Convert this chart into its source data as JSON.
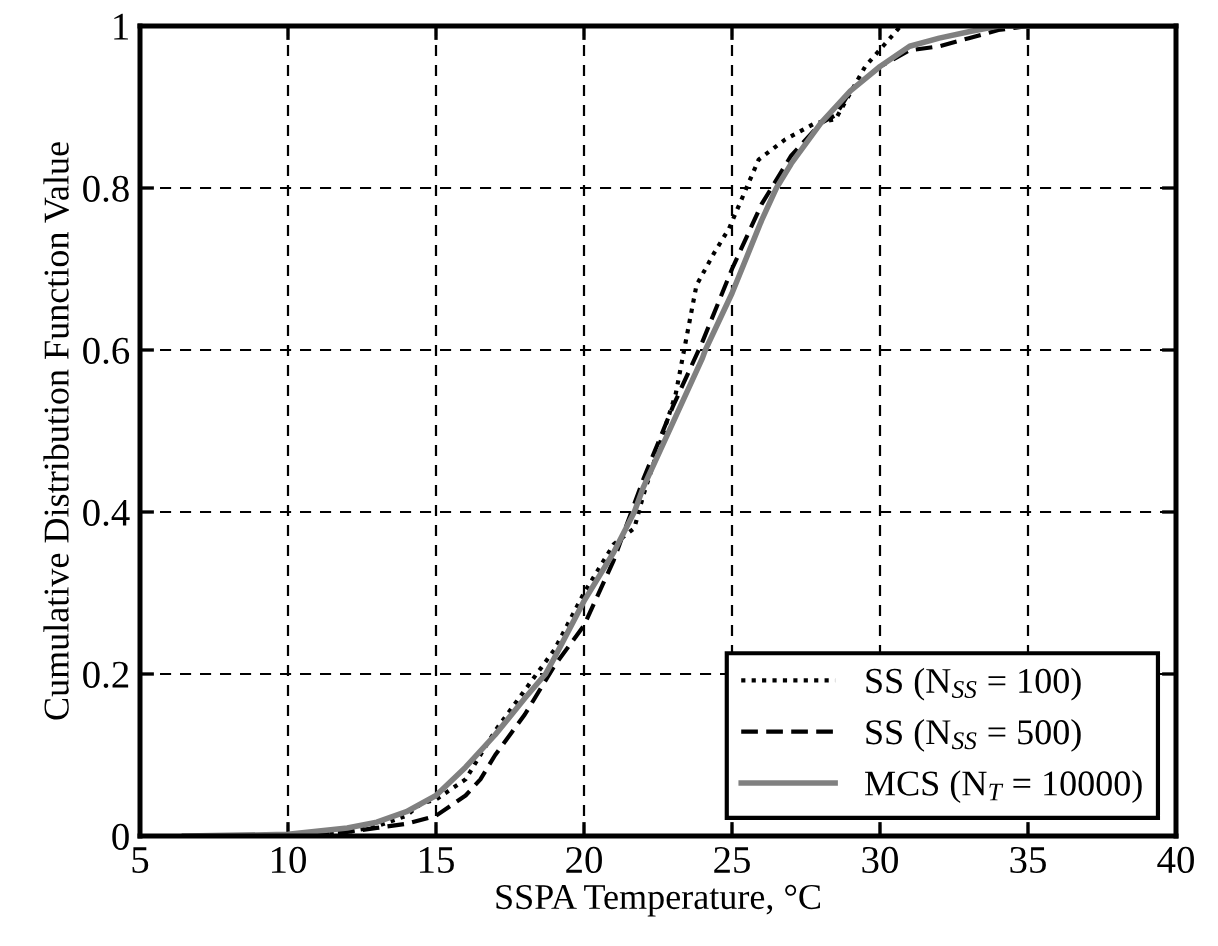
{
  "chart_data": {
    "type": "line",
    "xlabel": "SSPA Temperature, °C",
    "ylabel": "Cumulative Distribution Function Value",
    "xlim": [
      5,
      40
    ],
    "xticks": [
      5,
      10,
      15,
      20,
      25,
      30,
      35,
      40
    ],
    "ylim": [
      0,
      1
    ],
    "yticks": [
      0,
      0.2,
      0.4,
      0.6,
      0.8,
      1
    ],
    "grid": true,
    "legend": "bottom right",
    "marker": "none",
    "series": [
      {
        "name": "SS (N$_{SS}$ = 100)",
        "color": "#000000",
        "line_style": "dotted",
        "x": [
          10,
          12,
          13,
          14,
          14.5,
          15,
          16,
          17,
          18,
          19,
          20,
          21,
          21.7,
          22,
          23.1,
          23.8,
          24.4,
          24.9,
          25.9,
          26.8,
          27.8,
          28.5,
          29.5,
          30.1,
          30.7
        ],
        "values": [
          0,
          0.005,
          0.012,
          0.025,
          0.04,
          0.045,
          0.07,
          0.13,
          0.18,
          0.23,
          0.3,
          0.36,
          0.38,
          0.42,
          0.546,
          0.68,
          0.72,
          0.75,
          0.835,
          0.86,
          0.88,
          0.885,
          0.95,
          0.975,
          1
        ]
      },
      {
        "name": "SS (N$_{SS}$ = 500)",
        "color": "#000000",
        "line_style": "dashed",
        "x": [
          10,
          12,
          13,
          14,
          15,
          16,
          16.5,
          17,
          18,
          19,
          20,
          21,
          22,
          23,
          24,
          25,
          26,
          27,
          28,
          28.5,
          29,
          30,
          31,
          32,
          33,
          34,
          35,
          40
        ],
        "values": [
          0,
          0.005,
          0.01,
          0.015,
          0.025,
          0.05,
          0.07,
          0.1,
          0.15,
          0.21,
          0.26,
          0.34,
          0.44,
          0.53,
          0.61,
          0.7,
          0.78,
          0.84,
          0.88,
          0.89,
          0.92,
          0.95,
          0.97,
          0.975,
          0.985,
          0.995,
          1,
          1
        ]
      },
      {
        "name": "MCS (N$_{T}$ = 10000)",
        "color": "#808080",
        "line_style": "solid",
        "x": [
          6.5,
          10,
          12,
          13,
          14,
          15,
          16,
          17,
          18,
          18.7,
          19,
          20,
          21,
          21.7,
          22,
          23,
          24,
          24.1,
          25,
          26,
          26.5,
          27,
          28,
          29,
          30,
          31,
          32,
          33,
          34,
          40
        ],
        "values": [
          0,
          0.002,
          0.01,
          0.017,
          0.03,
          0.05,
          0.085,
          0.125,
          0.17,
          0.2,
          0.22,
          0.29,
          0.35,
          0.4,
          0.43,
          0.51,
          0.59,
          0.6,
          0.67,
          0.76,
          0.8,
          0.83,
          0.88,
          0.92,
          0.95,
          0.975,
          0.985,
          0.993,
          1,
          1
        ]
      }
    ]
  }
}
